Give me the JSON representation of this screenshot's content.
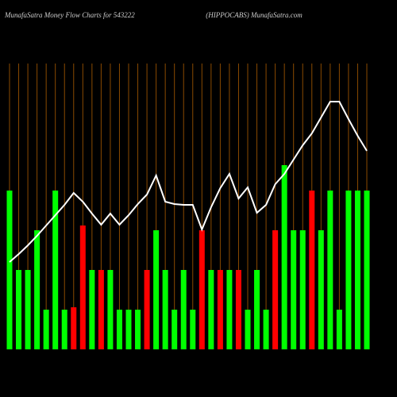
{
  "chart_data": {
    "type": "moneyflow",
    "title": "MunafaSatra  Money Flow  Charts for 543222",
    "subtitle": "(HIPPOCABS) MunafaSatra.com",
    "categories": [
      null,
      null,
      null,
      null,
      null,
      null,
      null,
      null,
      null,
      null,
      null,
      null,
      null,
      null,
      null,
      null,
      null,
      null,
      null,
      null,
      null,
      null,
      null,
      null,
      null,
      null,
      null,
      null,
      null,
      null,
      null,
      null,
      null,
      null,
      null,
      null,
      null,
      null,
      null,
      null
    ],
    "ylim": [
      0,
      360
    ],
    "grid_color": "#8a4a00",
    "bars": {
      "values": [
        200,
        100,
        100,
        150,
        50,
        200,
        50,
        53,
        156,
        100,
        100,
        100,
        50,
        50,
        50,
        100,
        150,
        100,
        50,
        100,
        50,
        150,
        100,
        100,
        100,
        100,
        50,
        100,
        50,
        150,
        232,
        150,
        150,
        200,
        150,
        200,
        50,
        200,
        200,
        200
      ],
      "colors": [
        "#00ff00",
        "#00ff00",
        "#00ff00",
        "#00ff00",
        "#00ff00",
        "#00ff00",
        "#00ff00",
        "#ff0000",
        "#ff0000",
        "#00ff00",
        "#ff0000",
        "#00ff00",
        "#00ff00",
        "#00ff00",
        "#00ff00",
        "#ff0000",
        "#00ff00",
        "#00ff00",
        "#00ff00",
        "#00ff00",
        "#00ff00",
        "#ff0000",
        "#00ff00",
        "#ff0000",
        "#00ff00",
        "#ff0000",
        "#00ff00",
        "#00ff00",
        "#00ff00",
        "#ff0000",
        "#00ff00",
        "#00ff00",
        "#00ff00",
        "#ff0000",
        "#00ff00",
        "#00ff00",
        "#00ff00",
        "#00ff00",
        "#00ff00",
        "#00ff00"
      ]
    },
    "line": {
      "color": "#ffffff",
      "values": [
        110,
        120,
        131,
        143,
        156,
        169,
        182,
        197,
        186,
        171,
        157,
        171,
        157,
        169,
        183,
        195,
        219,
        186,
        183,
        182,
        182,
        151,
        179,
        203,
        221,
        190,
        204,
        172,
        182,
        208,
        221,
        239,
        257,
        272,
        292,
        312,
        312,
        290,
        269,
        250
      ]
    }
  }
}
